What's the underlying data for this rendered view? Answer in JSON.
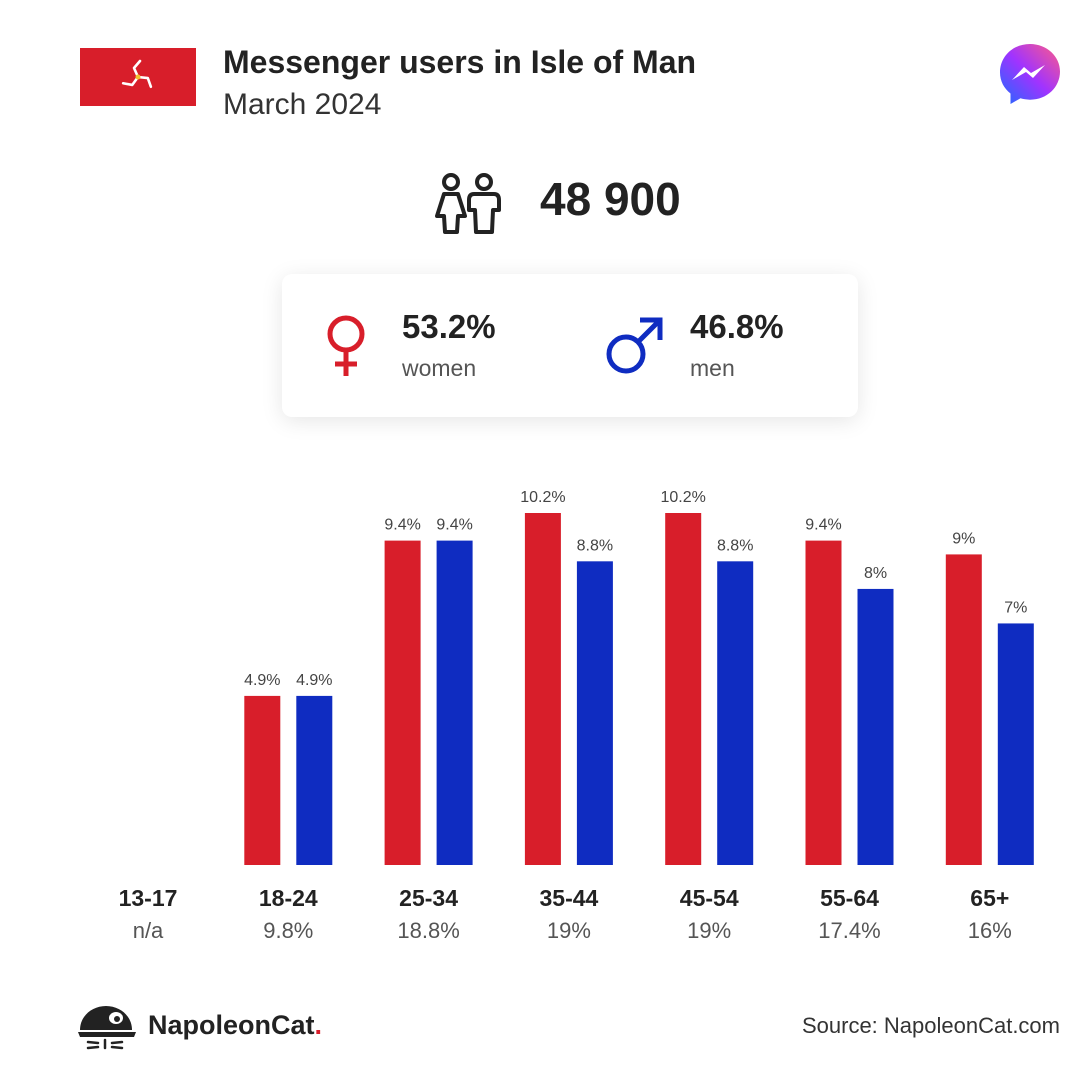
{
  "header": {
    "title": "Messenger users in Isle of Man",
    "subtitle": "March 2024"
  },
  "total": {
    "value": "48 900",
    "icon": "users-icon"
  },
  "gender": {
    "women": {
      "value": "53.2%",
      "label": "women",
      "color": "#d81e2a",
      "icon": "female-symbol-icon"
    },
    "men": {
      "value": "46.8%",
      "label": "men",
      "color": "#0f2cc1",
      "icon": "male-symbol-icon"
    }
  },
  "chart_data": {
    "type": "bar",
    "categories": [
      "13-17",
      "18-24",
      "25-34",
      "35-44",
      "45-54",
      "55-64",
      "65+"
    ],
    "category_totals": [
      "n/a",
      "9.8%",
      "18.8%",
      "19%",
      "19%",
      "17.4%",
      "16%"
    ],
    "series": [
      {
        "color": "#d81e2a",
        "values": [
          null,
          4.9,
          9.4,
          10.2,
          10.2,
          9.4,
          9
        ],
        "labels": [
          "",
          "4.9%",
          "9.4%",
          "10.2%",
          "10.2%",
          "9.4%",
          "9%"
        ]
      },
      {
        "color": "#0f2cc1",
        "values": [
          null,
          4.9,
          9.4,
          8.8,
          8.8,
          8,
          7
        ],
        "labels": [
          "",
          "4.9%",
          "9.4%",
          "8.8%",
          "8.8%",
          "8%",
          "7%"
        ]
      }
    ],
    "ylim": [
      0,
      10.2
    ],
    "grid": false,
    "legend": "none",
    "title": "",
    "xlabel": "",
    "ylabel": ""
  },
  "footer": {
    "brand_name": "NapoleonCat",
    "brand_dot": ".",
    "source": "Source: NapoleonCat.com"
  }
}
